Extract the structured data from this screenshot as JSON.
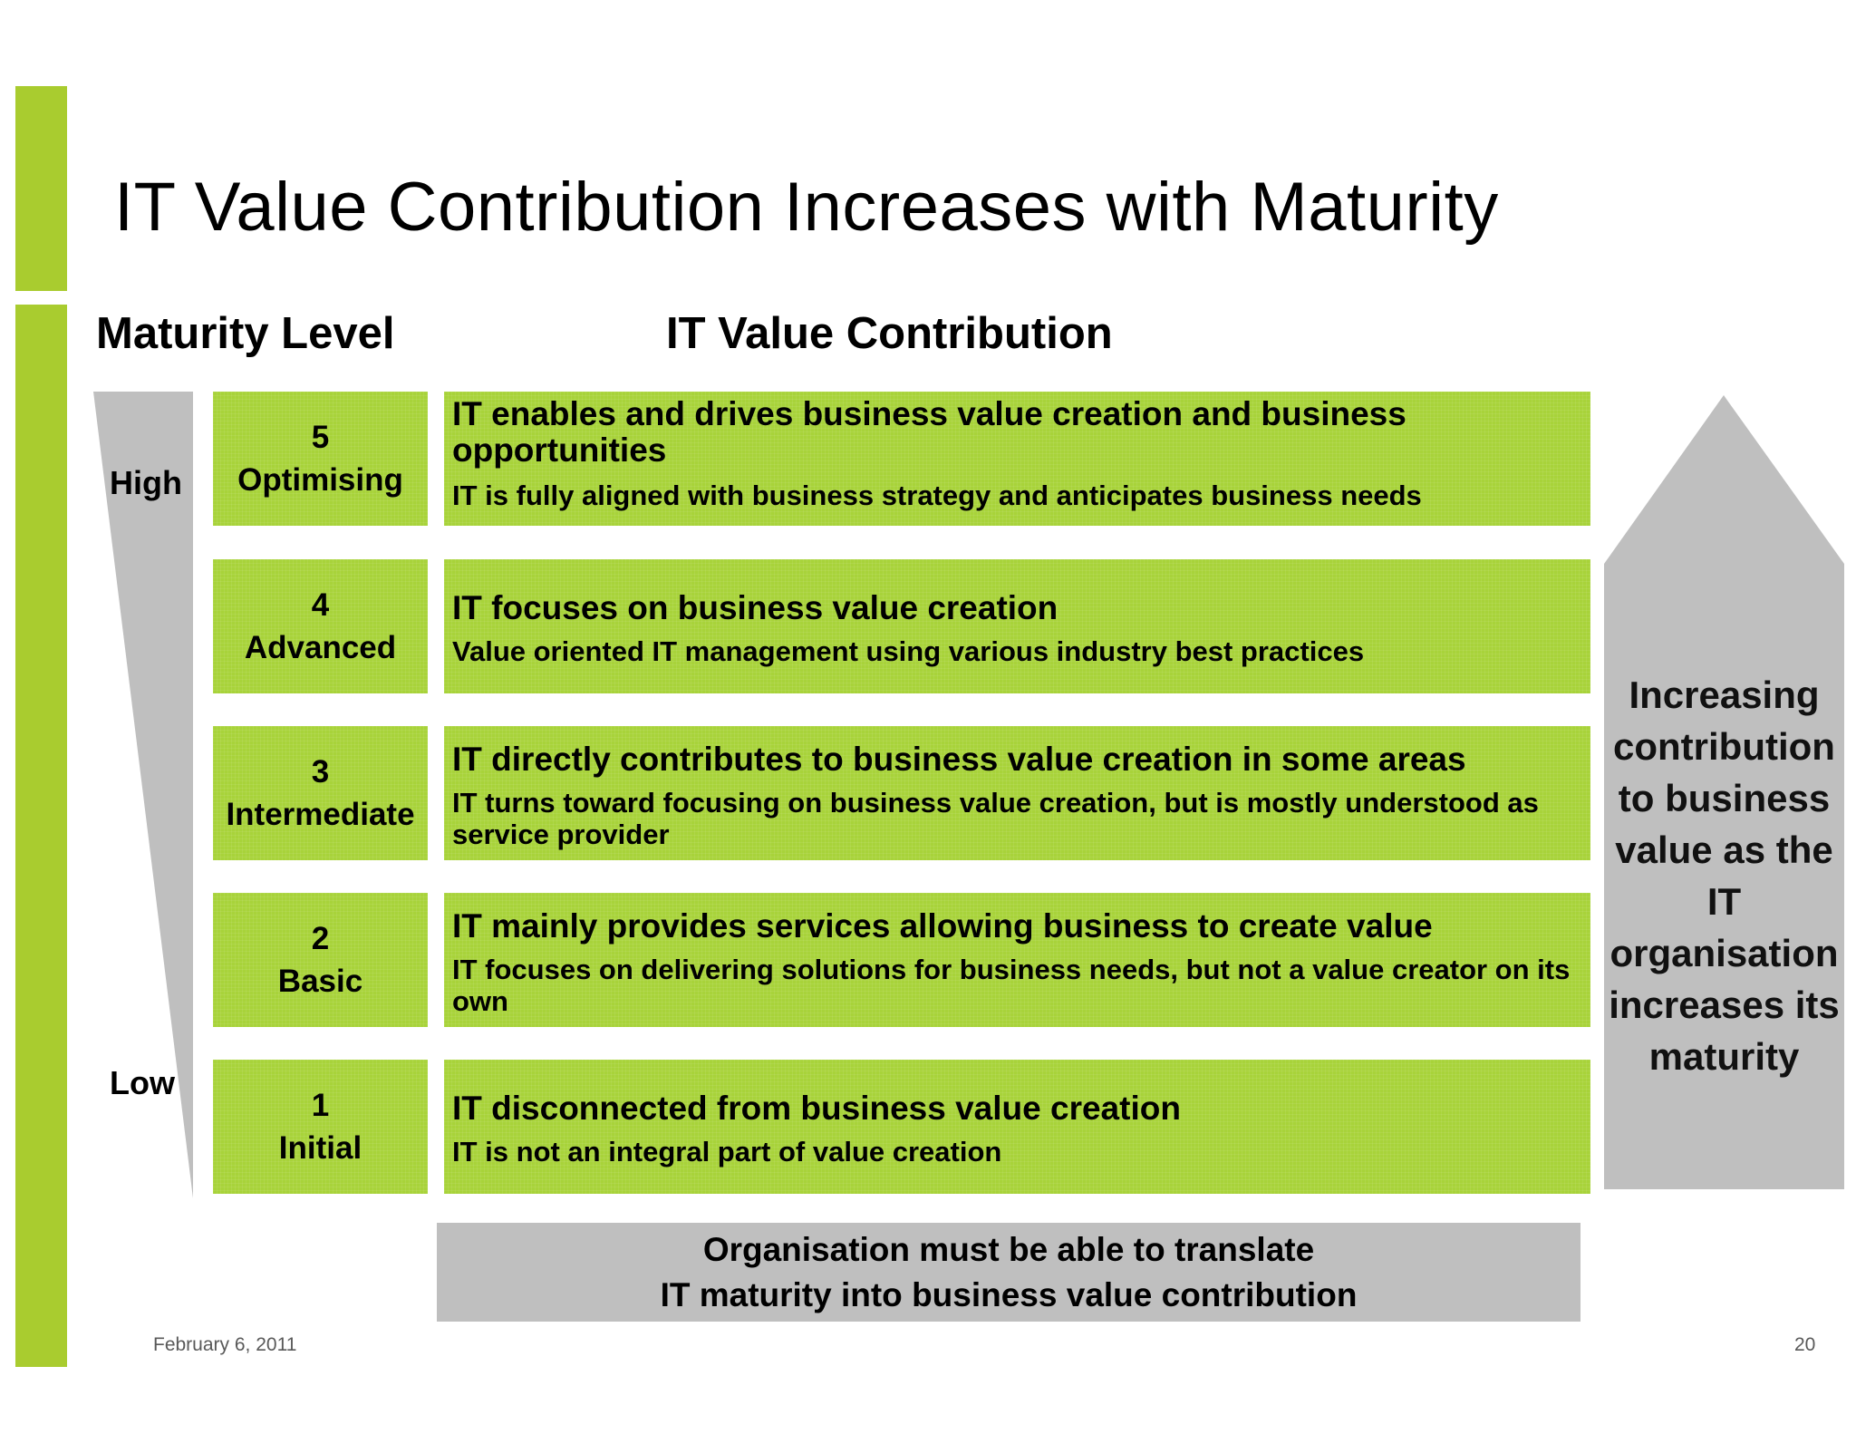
{
  "slide": {
    "title": "IT Value Contribution Increases with Maturity",
    "accent_color": "#a9cc2f",
    "box_color": "#a8d33a"
  },
  "headers": {
    "maturity": "Maturity Level",
    "value": "IT Value Contribution"
  },
  "scale": {
    "high": "High",
    "low": "Low"
  },
  "levels": [
    {
      "number": "5",
      "name": "Optimising",
      "main": "IT enables and drives business value creation and business opportunities",
      "sub": "IT is fully aligned with business strategy and anticipates business needs"
    },
    {
      "number": "4",
      "name": "Advanced",
      "main": "IT focuses on business value creation",
      "sub": "Value oriented IT management using various industry best practices"
    },
    {
      "number": "3",
      "name": "Intermediate",
      "main": "IT directly contributes to business value creation in some areas",
      "sub": "IT turns toward focusing on business value creation, but is mostly understood as service provider"
    },
    {
      "number": "2",
      "name": "Basic",
      "main": "IT mainly provides services allowing business to create value",
      "sub": "IT focuses on delivering solutions for business needs, but not a value creator on its own"
    },
    {
      "number": "1",
      "name": "Initial",
      "main": "IT disconnected from business value creation",
      "sub": "IT is not an integral part of value creation"
    }
  ],
  "arrow_text": "Increasing contribution to business value as the IT organisation increases its maturity",
  "note": {
    "line1": "Organisation must be able to translate",
    "line2": "IT maturity into business value contribution"
  },
  "footer": {
    "date": "February 6, 2011",
    "page": "20"
  }
}
